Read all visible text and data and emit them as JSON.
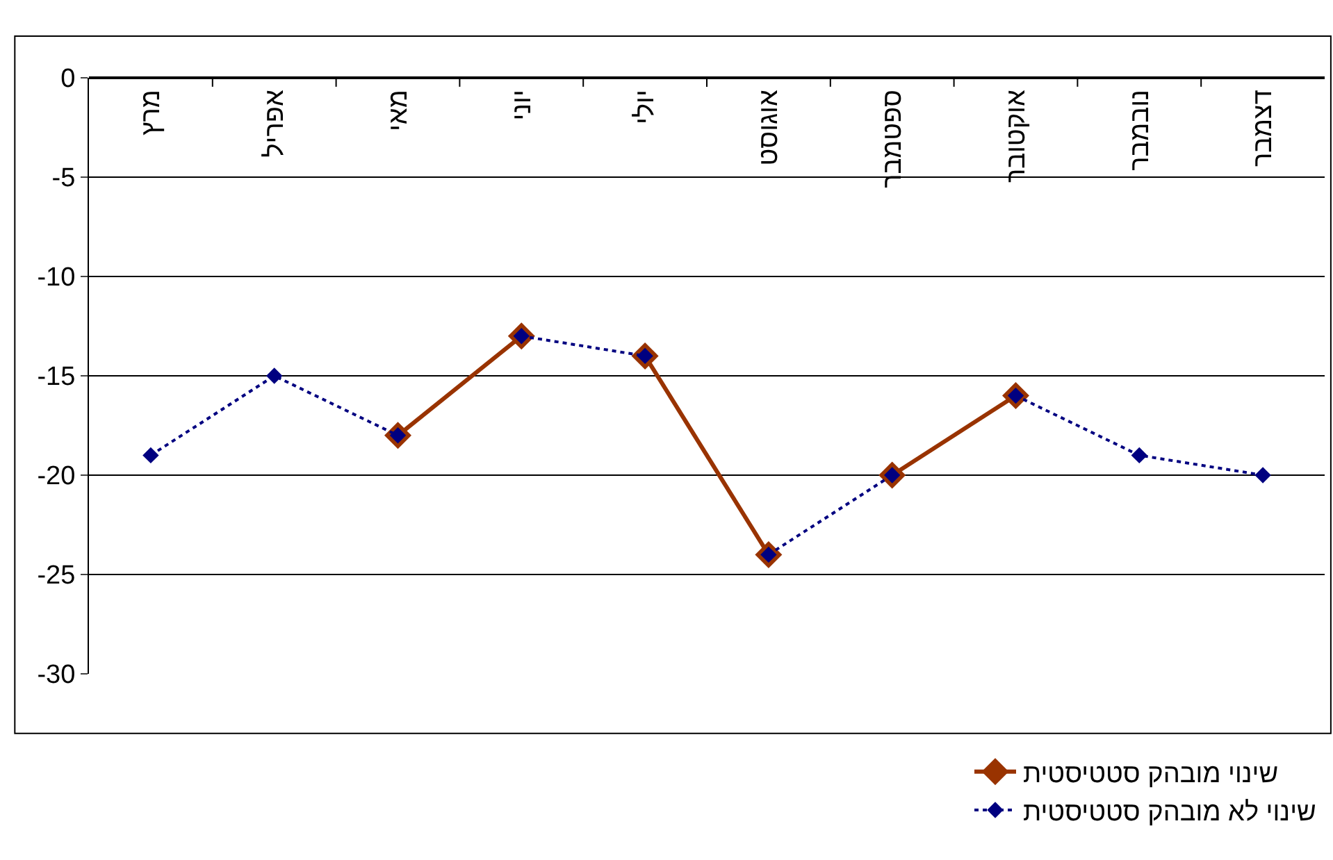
{
  "chart_data": {
    "type": "line",
    "categories": [
      "מרץ",
      "אפריל",
      "מאי",
      "יוני",
      "יולי",
      "אוגוסט",
      "ספטמבר",
      "אוקטובר",
      "נובמבר",
      "דצמבר"
    ],
    "series": [
      {
        "name": "שינוי מובהק סטטיסטית",
        "color": "#993300",
        "line_style": "solid",
        "x": [
          "מאי",
          "יוני",
          null,
          "יולי",
          "אוגוסט",
          null,
          "ספטמבר",
          "אוקטובר"
        ],
        "values": [
          -18,
          -13,
          null,
          -14,
          -24,
          null,
          -20,
          -16
        ]
      },
      {
        "name": "שינוי לא מובהק סטטיסטית",
        "color": "#000080",
        "line_style": "dotted",
        "x": [
          "מרץ",
          "אפריל",
          "מאי",
          null,
          "יוני",
          "יולי",
          null,
          "אוגוסט",
          "ספטמבר",
          null,
          "אוקטובר",
          "נובמבר",
          "דצמבר"
        ],
        "values": [
          -19,
          -15,
          -18,
          null,
          -13,
          -14,
          null,
          -24,
          -20,
          null,
          -16,
          -19,
          -20
        ]
      }
    ],
    "ylim": [
      -30,
      0
    ],
    "yticks": [
      -30,
      -25,
      -20,
      -15,
      -10,
      -5,
      0
    ],
    "grid": "y",
    "legend": "bottom right",
    "marker": "diamond"
  }
}
